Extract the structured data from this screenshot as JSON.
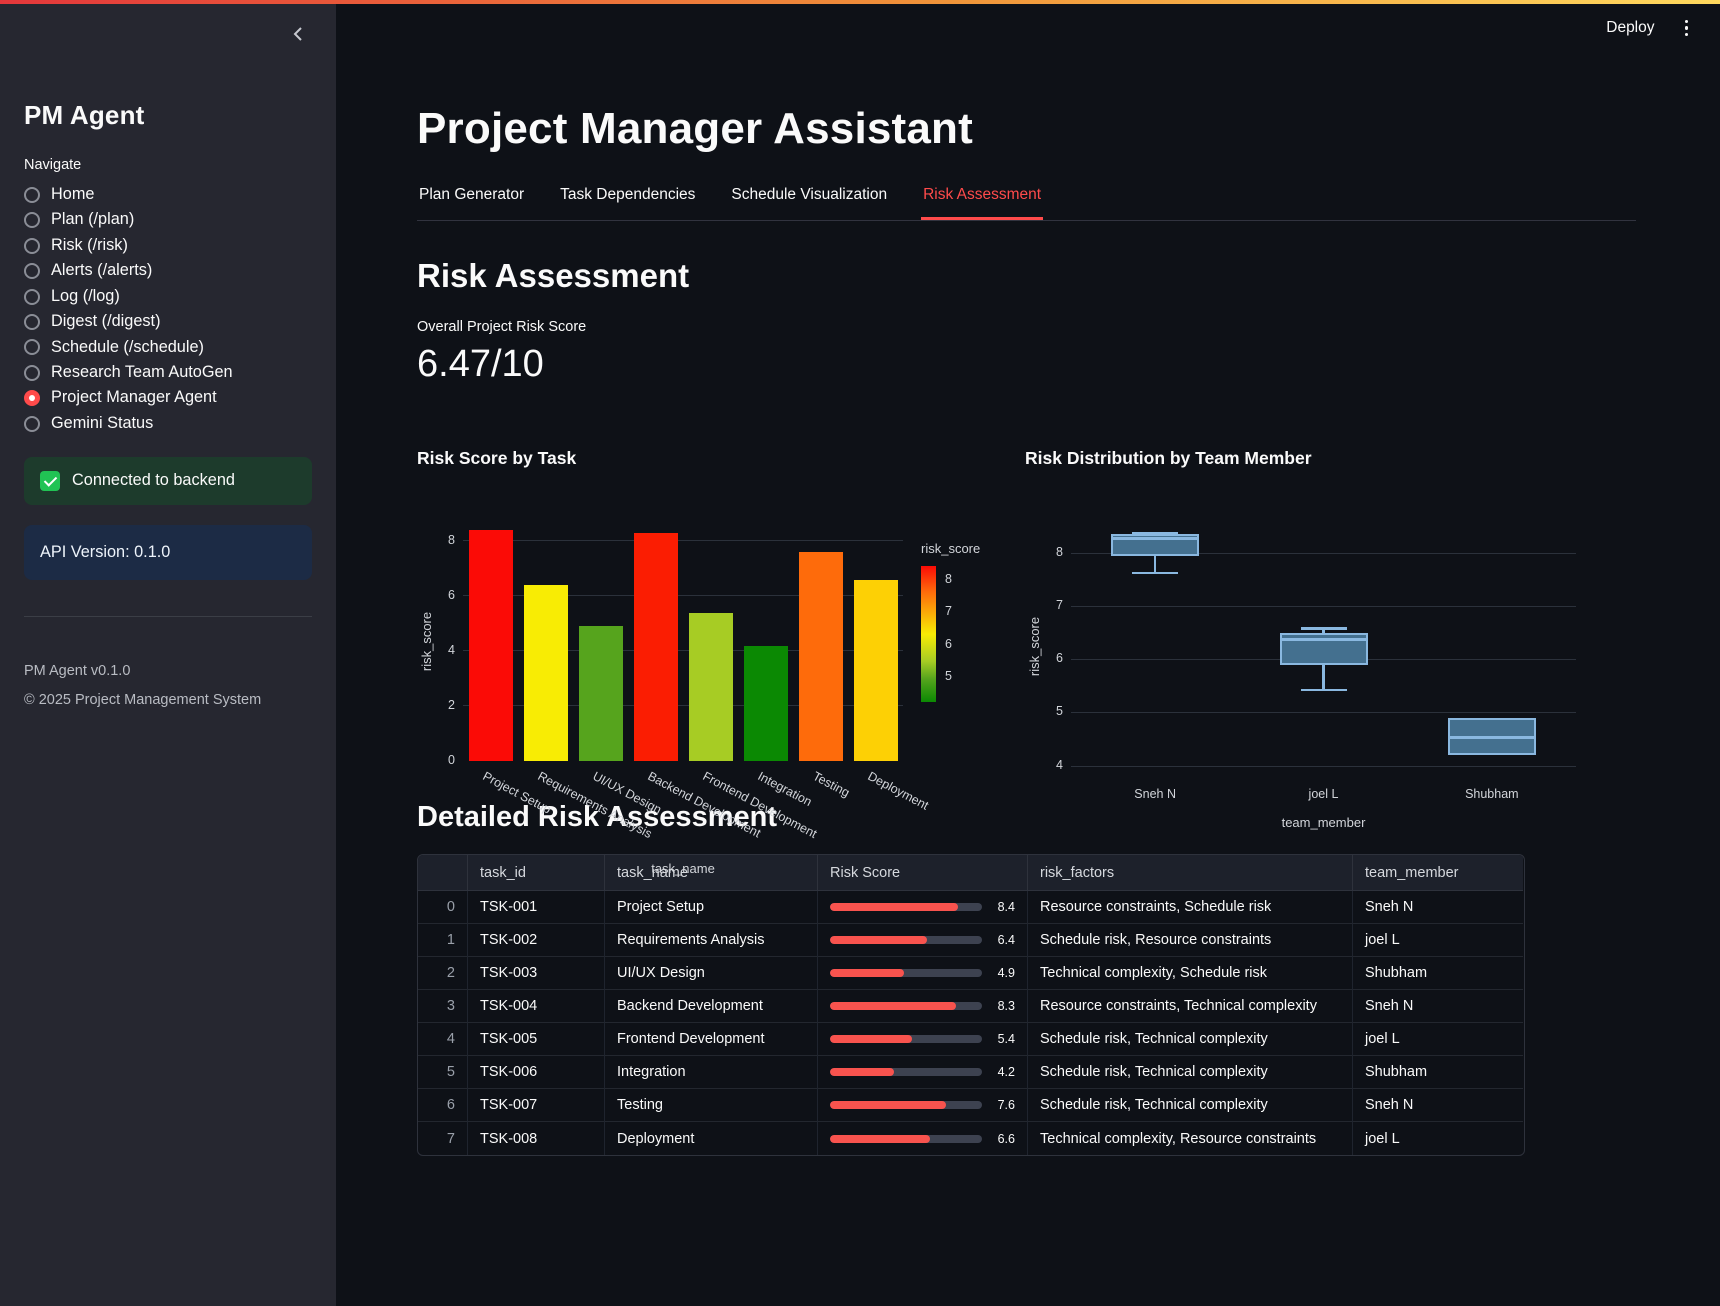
{
  "header": {
    "deploy_label": "Deploy",
    "title": "Project Manager Assistant"
  },
  "sidebar": {
    "title": "PM Agent",
    "nav_label": "Navigate",
    "items": [
      {
        "label": "Home",
        "selected": false
      },
      {
        "label": "Plan (/plan)",
        "selected": false
      },
      {
        "label": "Risk (/risk)",
        "selected": false
      },
      {
        "label": "Alerts (/alerts)",
        "selected": false
      },
      {
        "label": "Log (/log)",
        "selected": false
      },
      {
        "label": "Digest (/digest)",
        "selected": false
      },
      {
        "label": "Schedule (/schedule)",
        "selected": false
      },
      {
        "label": "Research Team AutoGen",
        "selected": false
      },
      {
        "label": "Project Manager Agent",
        "selected": true
      },
      {
        "label": "Gemini Status",
        "selected": false
      }
    ],
    "success_message": "Connected to backend",
    "info_message": "API Version: 0.1.0",
    "version": "PM Agent v0.1.0",
    "copyright": "© 2025 Project Management System"
  },
  "tabs": [
    {
      "label": "Plan Generator",
      "active": false
    },
    {
      "label": "Task Dependencies",
      "active": false
    },
    {
      "label": "Schedule Visualization",
      "active": false
    },
    {
      "label": "Risk Assessment",
      "active": true
    }
  ],
  "risk_section": {
    "heading": "Risk Assessment",
    "metric_label": "Overall Project Risk Score",
    "metric_value": "6.47/10"
  },
  "chart_data": [
    {
      "type": "bar",
      "title": "Risk Score by Task",
      "xlabel": "task_name",
      "ylabel": "risk_score",
      "categories": [
        "Project Setup",
        "Requirements Analysis",
        "UI/UX Design",
        "Backend Development",
        "Frontend Development",
        "Integration",
        "Testing",
        "Deployment"
      ],
      "values": [
        8.4,
        6.4,
        4.9,
        8.3,
        5.4,
        4.2,
        7.6,
        6.6
      ],
      "bar_colors": [
        "#fb0b06",
        "#f8ec04",
        "#56a41d",
        "#fb1d02",
        "#a7cc24",
        "#0b8903",
        "#fe6b0b",
        "#fdd005"
      ],
      "yticks": [
        0,
        2,
        4,
        6,
        8
      ],
      "ylim": [
        0,
        8.73
      ],
      "grid": true,
      "legend": {
        "title": "risk_score",
        "ticks": [
          8,
          7,
          6,
          5
        ],
        "value_range": [
          8.4,
          4.2
        ],
        "position": "right"
      }
    },
    {
      "type": "box",
      "title": "Risk Distribution by Team Member",
      "xlabel": "team_member",
      "ylabel": "risk_score",
      "categories": [
        "Sneh N",
        "joel L",
        "Shubham"
      ],
      "series": [
        {
          "name": "Sneh N",
          "values": [
            8.4,
            8.3,
            7.6
          ],
          "min": 7.6,
          "q1": 7.95,
          "median": 8.3,
          "q3": 8.35,
          "max": 8.4
        },
        {
          "name": "joel L",
          "values": [
            6.4,
            5.4,
            6.6
          ],
          "min": 5.4,
          "q1": 5.9,
          "median": 6.4,
          "q3": 6.5,
          "max": 6.6
        },
        {
          "name": "Shubham",
          "values": [
            4.9,
            4.2
          ],
          "min": 4.2,
          "q1": 4.2,
          "median": 4.55,
          "q3": 4.9,
          "max": 4.9
        }
      ],
      "yticks": [
        4,
        5,
        6,
        7,
        8
      ],
      "ylim": [
        3.9,
        8.6
      ],
      "grid": true,
      "box_fill": "#44708f",
      "box_border": "#8ab8e0"
    }
  ],
  "table_section": {
    "heading": "Detailed Risk Assessment",
    "columns": [
      "",
      "task_id",
      "task_name",
      "Risk Score",
      "risk_factors",
      "team_member"
    ],
    "progress_max": 10,
    "rows": [
      {
        "index": 0,
        "task_id": "TSK-001",
        "task_name": "Project Setup",
        "risk_score": 8.4,
        "risk_factors": "Resource constraints, Schedule risk",
        "team_member": "Sneh N"
      },
      {
        "index": 1,
        "task_id": "TSK-002",
        "task_name": "Requirements Analysis",
        "risk_score": 6.4,
        "risk_factors": "Schedule risk, Resource constraints",
        "team_member": "joel L"
      },
      {
        "index": 2,
        "task_id": "TSK-003",
        "task_name": "UI/UX Design",
        "risk_score": 4.9,
        "risk_factors": "Technical complexity, Schedule risk",
        "team_member": "Shubham"
      },
      {
        "index": 3,
        "task_id": "TSK-004",
        "task_name": "Backend Development",
        "risk_score": 8.3,
        "risk_factors": "Resource constraints, Technical complexity",
        "team_member": "Sneh N"
      },
      {
        "index": 4,
        "task_id": "TSK-005",
        "task_name": "Frontend Development",
        "risk_score": 5.4,
        "risk_factors": "Schedule risk, Technical complexity",
        "team_member": "joel L"
      },
      {
        "index": 5,
        "task_id": "TSK-006",
        "task_name": "Integration",
        "risk_score": 4.2,
        "risk_factors": "Schedule risk, Technical complexity",
        "team_member": "Shubham"
      },
      {
        "index": 6,
        "task_id": "TSK-007",
        "task_name": "Testing",
        "risk_score": 7.6,
        "risk_factors": "Schedule risk, Technical complexity",
        "team_member": "Sneh N"
      },
      {
        "index": 7,
        "task_id": "TSK-008",
        "task_name": "Deployment",
        "risk_score": 6.6,
        "risk_factors": "Technical complexity, Resource constraints",
        "team_member": "joel L"
      }
    ]
  },
  "colors": {
    "accent": "#ff4b4b",
    "background": "#0e1117",
    "sidebar_background": "#262730",
    "success_green": "#21c354",
    "progress_fill": "#f8534e",
    "box_fill": "#44708f",
    "box_border": "#8ab8e0"
  }
}
